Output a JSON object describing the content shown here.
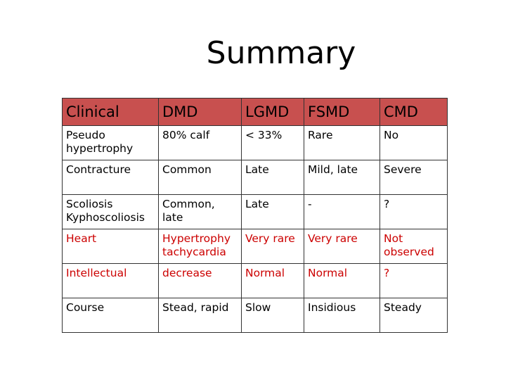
{
  "title": "Summary",
  "table": {
    "headers": [
      "Clinical",
      "DMD",
      "LGMD",
      "FSMD",
      "CMD"
    ],
    "rows": [
      [
        "Pseudo hypertrophy",
        "80% calf",
        "< 33%",
        "Rare",
        "No"
      ],
      [
        "Contracture",
        "Common",
        "Late",
        "Mild, late",
        "Severe"
      ],
      [
        "Scoliosis Kyphoscoliosis",
        "Common, late",
        "Late",
        "-",
        "?"
      ],
      [
        "Heart",
        "Hypertrophy tachycardia",
        "Very rare",
        "Very rare",
        "Not observed"
      ],
      [
        "Intellectual",
        "decrease",
        "Normal",
        "Normal",
        "?"
      ],
      [
        "Course",
        "Stead, rapid",
        "Slow",
        "Insidious",
        "Steady"
      ]
    ],
    "highlight_color": "#cc0000",
    "header_color": "#c8504f"
  }
}
